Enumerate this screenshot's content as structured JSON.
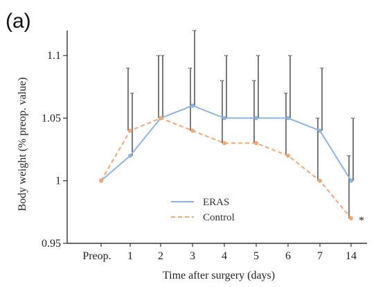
{
  "panel_label": "(a)",
  "chart_data": {
    "type": "line",
    "title": "",
    "xlabel": "Time after surgery (days)",
    "ylabel": "Body weight (% preop. value)",
    "categories": [
      "Preop.",
      "1",
      "2",
      "3",
      "4",
      "5",
      "6",
      "7",
      "14"
    ],
    "ylim": [
      0.95,
      1.12
    ],
    "yticks": [
      0.95,
      1,
      1.05,
      1.1
    ],
    "ytick_labels": [
      "0.95",
      "1",
      "1.05",
      "1.1"
    ],
    "grid": false,
    "legend_position": "bottom-center",
    "series": [
      {
        "name": "ERAS",
        "color": "#8fb3dd",
        "style": "solid",
        "values": [
          1.0,
          1.02,
          1.05,
          1.06,
          1.05,
          1.05,
          1.05,
          1.04,
          1.0
        ],
        "error_upper": [
          null,
          1.07,
          1.1,
          1.12,
          1.1,
          1.1,
          1.1,
          1.09,
          1.05
        ]
      },
      {
        "name": "Control",
        "color": "#f0a878",
        "style": "dashed",
        "values": [
          1.0,
          1.04,
          1.05,
          1.04,
          1.03,
          1.03,
          1.02,
          1.0,
          0.97
        ],
        "error_upper": [
          null,
          1.09,
          1.1,
          1.09,
          1.08,
          1.08,
          1.07,
          1.05,
          1.02
        ]
      }
    ],
    "annotations": [
      {
        "text": "*",
        "category": "14",
        "y": 0.97
      }
    ]
  }
}
